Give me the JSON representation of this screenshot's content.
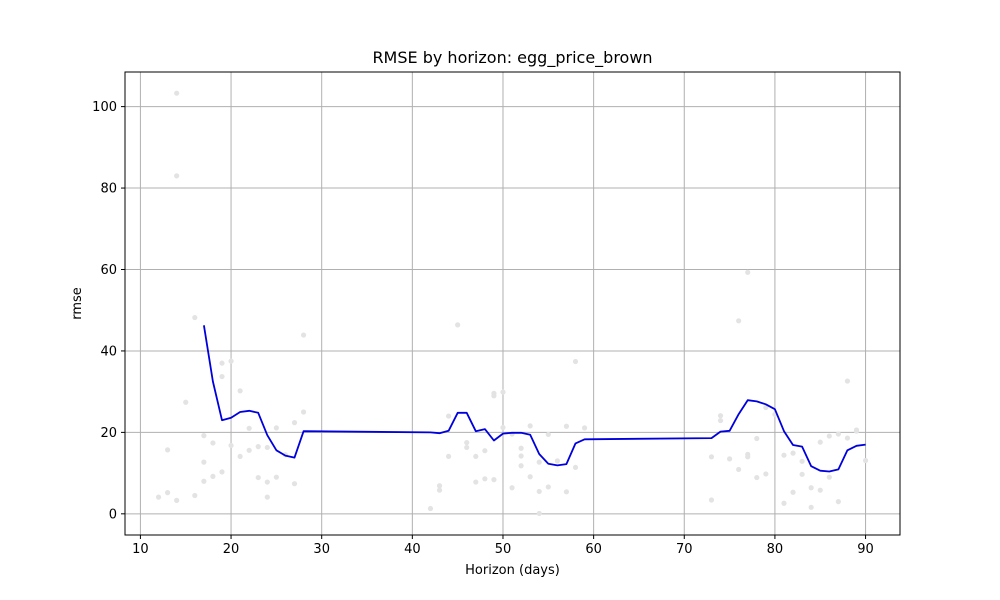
{
  "chart_data": {
    "type": "line",
    "title": "RMSE by horizon: egg_price_brown",
    "xlabel": "Horizon (days)",
    "ylabel": "rmse",
    "xlim": [
      8.3,
      93.8
    ],
    "ylim": [
      -5.2,
      108.5
    ],
    "xticks": [
      10,
      20,
      30,
      40,
      50,
      60,
      70,
      80,
      90
    ],
    "yticks": [
      0,
      20,
      40,
      60,
      80,
      100
    ],
    "grid": true,
    "colors": {
      "line": "#0000dd",
      "points": "#e3e3e3"
    },
    "line": {
      "x": [
        17,
        18,
        19,
        20,
        21,
        22,
        23,
        24,
        25,
        26,
        27,
        28,
        42,
        43,
        44,
        45,
        46,
        47,
        48,
        49,
        50,
        51,
        52,
        53,
        54,
        55,
        56,
        57,
        58,
        59,
        73,
        74,
        75,
        76,
        77,
        78,
        79,
        80,
        81,
        82,
        83,
        84,
        85,
        86,
        87,
        88,
        89,
        90
      ],
      "y": [
        46.3,
        32.5,
        23.0,
        23.6,
        25.0,
        25.3,
        24.8,
        19.3,
        15.6,
        14.3,
        13.8,
        20.3,
        20.0,
        19.8,
        20.4,
        24.8,
        24.8,
        20.3,
        20.8,
        18.0,
        19.7,
        19.9,
        19.9,
        19.4,
        14.7,
        12.3,
        11.9,
        12.2,
        17.3,
        18.3,
        18.6,
        20.2,
        20.4,
        24.5,
        27.9,
        27.6,
        26.9,
        25.7,
        20.3,
        16.9,
        16.5,
        11.7,
        10.6,
        10.4,
        10.9,
        15.6,
        16.7,
        17.0
      ]
    },
    "points": {
      "x": [
        12,
        13,
        13,
        14,
        14,
        14,
        15,
        16,
        16,
        17,
        17,
        17,
        18,
        18,
        19,
        19,
        19,
        20,
        20,
        21,
        21,
        22,
        22,
        23,
        23,
        24,
        24,
        24,
        25,
        25,
        26,
        27,
        27,
        28,
        28,
        42,
        43,
        43,
        44,
        44,
        45,
        46,
        46,
        47,
        47,
        48,
        48,
        49,
        49,
        49,
        50,
        50,
        51,
        51,
        52,
        52,
        52,
        53,
        53,
        54,
        54,
        54,
        55,
        55,
        56,
        57,
        57,
        58,
        58,
        59,
        73,
        73,
        74,
        74,
        75,
        76,
        76,
        77,
        77,
        77,
        78,
        78,
        79,
        79,
        80,
        81,
        81,
        82,
        82,
        83,
        83,
        84,
        84,
        85,
        85,
        86,
        86,
        87,
        87,
        88,
        88,
        89,
        89,
        90
      ],
      "y": [
        4.1,
        5.2,
        15.7,
        103.3,
        83.0,
        3.3,
        27.4,
        48.2,
        4.5,
        19.2,
        8.0,
        12.7,
        17.4,
        9.2,
        37.0,
        10.3,
        33.7,
        16.8,
        37.5,
        30.2,
        14.1,
        21.0,
        15.6,
        16.5,
        8.9,
        16.3,
        7.8,
        4.1,
        21.1,
        9.0,
        14.5,
        22.4,
        7.4,
        43.9,
        25.0,
        1.3,
        5.8,
        6.9,
        14.1,
        24.0,
        46.4,
        17.5,
        16.3,
        14.1,
        7.8,
        15.5,
        8.6,
        29.6,
        29.0,
        8.4,
        29.9,
        21.2,
        19.6,
        6.4,
        16.1,
        14.2,
        11.8,
        21.6,
        9.1,
        12.7,
        5.5,
        0.1,
        19.5,
        6.6,
        13.0,
        21.5,
        5.4,
        37.4,
        11.4,
        21.1,
        14.0,
        3.4,
        24.1,
        22.9,
        13.5,
        10.9,
        47.4,
        59.3,
        14.6,
        14.0,
        18.5,
        8.9,
        26.1,
        9.8,
        24.4,
        14.4,
        2.6,
        5.3,
        14.9,
        12.9,
        9.7,
        6.4,
        1.6,
        5.8,
        17.6,
        9.0,
        19.1,
        3.0,
        19.6,
        32.6,
        18.6,
        20.3,
        20.6,
        13.1
      ]
    }
  }
}
